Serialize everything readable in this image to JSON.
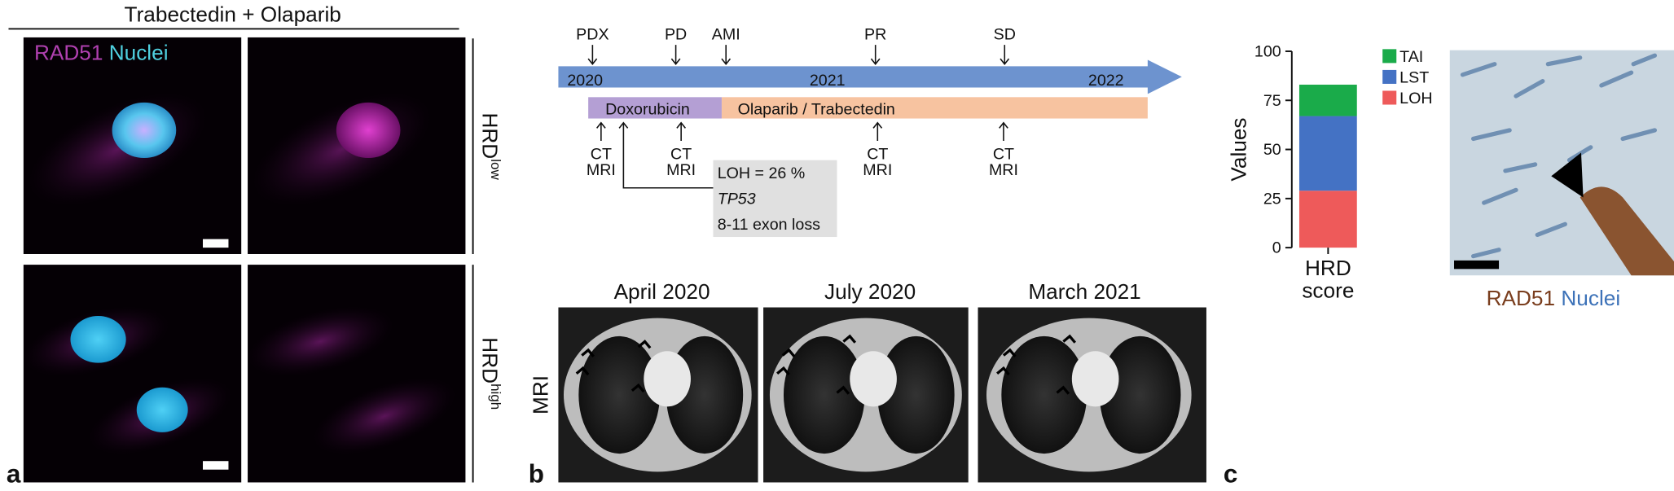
{
  "panel_a": {
    "letter": "a",
    "title": "Trabectedin + Olaparib",
    "stain_labels": [
      "RAD51",
      "Nuclei"
    ],
    "row_labels": [
      {
        "base": "HRD",
        "sup": "low"
      },
      {
        "base": "HRD",
        "sup": "high"
      }
    ]
  },
  "panel_b": {
    "letter": "b",
    "events": [
      "PDX",
      "PD",
      "AMI",
      "PR",
      "SD"
    ],
    "years": [
      "2020",
      "2021",
      "2022"
    ],
    "treatments": [
      "Doxorubicin",
      "Olaparib / Trabectedin"
    ],
    "imaging": [
      [
        "CT",
        "MRI"
      ],
      [
        "CT",
        "MRI"
      ],
      [
        "CT",
        "MRI"
      ],
      [
        "CT",
        "MRI"
      ]
    ],
    "genomics_box": [
      "LOH = 26 %",
      "TP53",
      "8-11 exon loss"
    ],
    "mri_label": "MRI",
    "mri_dates": [
      "April 2020",
      "July 2020",
      "March 2021"
    ]
  },
  "panel_c": {
    "letter": "c",
    "stain_labels": [
      "RAD51",
      "Nuclei"
    ]
  },
  "chart_data": {
    "type": "stacked_bar",
    "ylabel": "Values",
    "categories": [
      "HRD score"
    ],
    "series": [
      {
        "name": "LOH",
        "color": "#ee5a5a",
        "values": [
          29
        ]
      },
      {
        "name": "LST",
        "color": "#4472c4",
        "values": [
          38
        ]
      },
      {
        "name": "TAI",
        "color": "#1aab4a",
        "values": [
          16
        ]
      }
    ],
    "ylim": [
      0,
      100
    ],
    "yticks": [
      0,
      25,
      50,
      75,
      100
    ]
  }
}
